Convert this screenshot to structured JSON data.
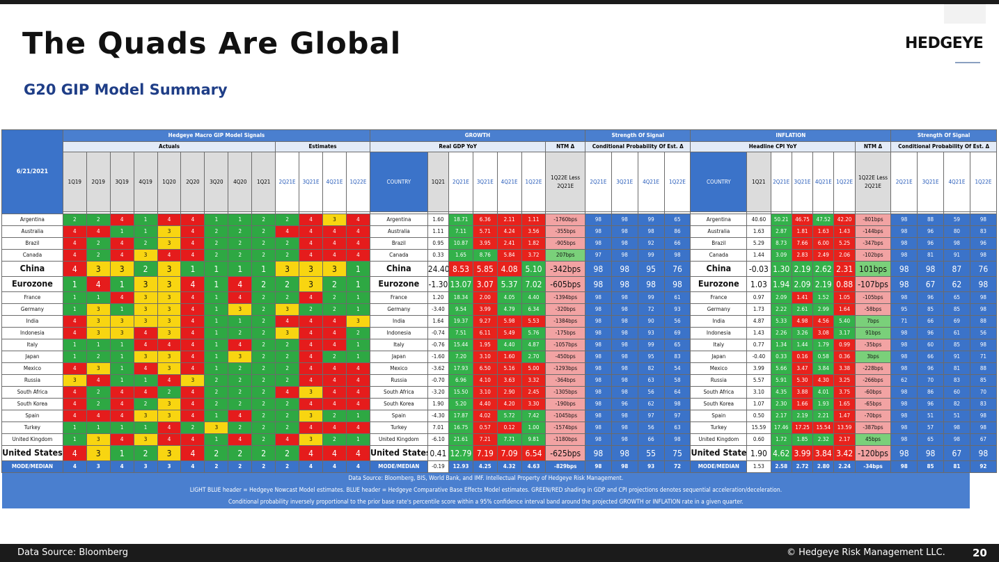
{
  "slide": {
    "title": "The Quads Are Global",
    "subtitle": "G20 GIP Model Summary",
    "logo": "HEDGEYE",
    "footer_left": "Data Source: Bloomberg",
    "footer_right": "© Hedgeye Risk Management LLC.",
    "page": "20"
  },
  "colors": {
    "green": "#2ea843",
    "yellow": "#f8d511",
    "red": "#e51c1c",
    "blue_header": "#4a7fcf",
    "light_blue_header": "#e3ebf7"
  },
  "table": {
    "date": "6/21/2021",
    "h_signals": "Hedgeye Macro GIP Model Signals",
    "h_actuals": "Actuals",
    "h_estimates": "Estimates",
    "h_growth": "GROWTH",
    "h_inflation": "INFLATION",
    "h_strength": "Strength Of Signal",
    "h_cond": "Conditional Probability Of Est. Δ",
    "h_real_gdp": "Real GDP YoY",
    "h_headline_cpi": "Headline CPI YoY",
    "h_ntm": "NTM Δ",
    "h_country": "COUNTRY",
    "h_gdp_less": "1Q22E Less 2Q21E",
    "h_cpi_less": "1Q22E Less 2Q21E",
    "quarters_actual": [
      "1Q19",
      "2Q19",
      "3Q19",
      "4Q19",
      "1Q20",
      "2Q20",
      "3Q20",
      "4Q20",
      "1Q21"
    ],
    "quarters_est": [
      "2Q21E",
      "3Q21E",
      "4Q21E",
      "1Q22E"
    ],
    "gdp_q": [
      "1Q21",
      "2Q21E",
      "3Q21E",
      "4Q21E",
      "1Q22E"
    ],
    "prob_q": [
      "2Q21E",
      "3Q21E",
      "4Q21E",
      "1Q22E"
    ],
    "rows": [
      {
        "c": "Argentina",
        "q": [
          "2",
          "2",
          "4",
          "1",
          "4",
          "4",
          "1",
          "1",
          "2",
          "2",
          "4",
          "3",
          "4"
        ],
        "gdp": [
          "1.60",
          "18.71",
          "6.36",
          "2.11",
          "1.11"
        ],
        "gn": "-1760bps",
        "gp": [
          "98",
          "98",
          "99",
          "65"
        ],
        "cpi": [
          "40.60",
          "50.21",
          "46.75",
          "47.52",
          "42.20"
        ],
        "in": "-801bps",
        "ip": [
          "98",
          "88",
          "59",
          "98"
        ]
      },
      {
        "c": "Australia",
        "q": [
          "4",
          "4",
          "1",
          "1",
          "3",
          "4",
          "2",
          "2",
          "2",
          "4",
          "4",
          "4",
          "4"
        ],
        "gdp": [
          "1.11",
          "7.11",
          "5.71",
          "4.24",
          "3.56"
        ],
        "gn": "-355bps",
        "gp": [
          "98",
          "98",
          "98",
          "86"
        ],
        "cpi": [
          "1.63",
          "2.87",
          "1.81",
          "1.63",
          "1.43"
        ],
        "in": "-144bps",
        "ip": [
          "98",
          "96",
          "80",
          "83"
        ]
      },
      {
        "c": "Brazil",
        "q": [
          "4",
          "2",
          "4",
          "2",
          "3",
          "4",
          "2",
          "2",
          "2",
          "2",
          "4",
          "4",
          "4"
        ],
        "gdp": [
          "0.95",
          "10.87",
          "3.95",
          "2.41",
          "1.82"
        ],
        "gn": "-905bps",
        "gp": [
          "98",
          "98",
          "92",
          "66"
        ],
        "cpi": [
          "5.29",
          "8.73",
          "7.66",
          "6.00",
          "5.25"
        ],
        "in": "-347bps",
        "ip": [
          "98",
          "96",
          "98",
          "96"
        ]
      },
      {
        "c": "Canada",
        "q": [
          "4",
          "2",
          "4",
          "3",
          "4",
          "4",
          "2",
          "2",
          "2",
          "2",
          "4",
          "4",
          "4"
        ],
        "gdp": [
          "0.33",
          "1.65",
          "8.76",
          "5.84",
          "3.72"
        ],
        "gn": "207bps",
        "gp": [
          "97",
          "98",
          "99",
          "98"
        ],
        "cpi": [
          "1.44",
          "3.09",
          "2.83",
          "2.49",
          "2.06"
        ],
        "in": "-102bps",
        "ip": [
          "98",
          "81",
          "91",
          "98"
        ]
      },
      {
        "c": "China",
        "big": true,
        "q": [
          "4",
          "3",
          "3",
          "2",
          "3",
          "1",
          "1",
          "1",
          "1",
          "3",
          "3",
          "3",
          "1"
        ],
        "gdp": [
          "24.40",
          "8.53",
          "5.85",
          "4.08",
          "5.10"
        ],
        "gn": "-342bps",
        "gp": [
          "98",
          "98",
          "95",
          "76"
        ],
        "cpi": [
          "-0.03",
          "1.30",
          "2.19",
          "2.62",
          "2.31"
        ],
        "in": "101bps",
        "ip": [
          "98",
          "98",
          "87",
          "76"
        ]
      },
      {
        "c": "Eurozone",
        "big": true,
        "q": [
          "1",
          "4",
          "1",
          "3",
          "3",
          "4",
          "1",
          "4",
          "2",
          "2",
          "3",
          "2",
          "1"
        ],
        "gdp": [
          "-1.30",
          "13.07",
          "3.07",
          "5.37",
          "7.02"
        ],
        "gn": "-605bps",
        "gp": [
          "98",
          "98",
          "98",
          "98"
        ],
        "cpi": [
          "1.03",
          "1.94",
          "2.09",
          "2.19",
          "0.88"
        ],
        "in": "-107bps",
        "ip": [
          "98",
          "67",
          "62",
          "98"
        ]
      },
      {
        "c": "France",
        "q": [
          "1",
          "1",
          "4",
          "3",
          "3",
          "4",
          "1",
          "4",
          "2",
          "2",
          "4",
          "2",
          "1"
        ],
        "gdp": [
          "1.20",
          "18.34",
          "2.00",
          "4.05",
          "4.40"
        ],
        "gn": "-1394bps",
        "gp": [
          "98",
          "98",
          "99",
          "61"
        ],
        "cpi": [
          "0.97",
          "2.09",
          "1.41",
          "1.52",
          "1.05"
        ],
        "in": "-105bps",
        "ip": [
          "98",
          "96",
          "65",
          "98"
        ]
      },
      {
        "c": "Germany",
        "q": [
          "1",
          "3",
          "1",
          "3",
          "3",
          "4",
          "1",
          "3",
          "2",
          "3",
          "2",
          "2",
          "1"
        ],
        "gdp": [
          "-3.40",
          "9.54",
          "3.99",
          "4.79",
          "6.34"
        ],
        "gn": "-320bps",
        "gp": [
          "98",
          "98",
          "72",
          "93"
        ],
        "cpi": [
          "1.73",
          "2.22",
          "2.61",
          "2.99",
          "1.64"
        ],
        "in": "-58bps",
        "ip": [
          "95",
          "85",
          "85",
          "98"
        ]
      },
      {
        "c": "India",
        "q": [
          "4",
          "3",
          "3",
          "3",
          "3",
          "4",
          "1",
          "1",
          "2",
          "4",
          "4",
          "4",
          "3"
        ],
        "gdp": [
          "1.64",
          "19.37",
          "9.27",
          "5.98",
          "5.53"
        ],
        "gn": "-1384bps",
        "gp": [
          "98",
          "98",
          "90",
          "56"
        ],
        "cpi": [
          "4.87",
          "5.33",
          "4.98",
          "4.56",
          "5.40"
        ],
        "in": "7bps",
        "ip": [
          "71",
          "66",
          "69",
          "88"
        ]
      },
      {
        "c": "Indonesia",
        "q": [
          "4",
          "3",
          "3",
          "4",
          "3",
          "4",
          "1",
          "2",
          "2",
          "3",
          "4",
          "4",
          "2"
        ],
        "gdp": [
          "-0.74",
          "7.51",
          "6.11",
          "5.49",
          "5.76"
        ],
        "gn": "-175bps",
        "gp": [
          "98",
          "98",
          "93",
          "69"
        ],
        "cpi": [
          "1.43",
          "2.26",
          "3.26",
          "3.08",
          "3.17"
        ],
        "in": "91bps",
        "ip": [
          "98",
          "96",
          "61",
          "56"
        ]
      },
      {
        "c": "Italy",
        "q": [
          "1",
          "1",
          "1",
          "4",
          "4",
          "4",
          "1",
          "4",
          "2",
          "2",
          "4",
          "4",
          "1"
        ],
        "gdp": [
          "-0.76",
          "15.44",
          "1.95",
          "4.40",
          "4.87"
        ],
        "gn": "-1057bps",
        "gp": [
          "98",
          "98",
          "99",
          "65"
        ],
        "cpi": [
          "0.77",
          "1.34",
          "1.44",
          "1.79",
          "0.99"
        ],
        "in": "-35bps",
        "ip": [
          "98",
          "60",
          "85",
          "98"
        ]
      },
      {
        "c": "Japan",
        "q": [
          "1",
          "2",
          "1",
          "3",
          "3",
          "4",
          "1",
          "3",
          "2",
          "2",
          "4",
          "2",
          "1"
        ],
        "gdp": [
          "-1.60",
          "7.20",
          "3.10",
          "1.60",
          "2.70"
        ],
        "gn": "-450bps",
        "gp": [
          "98",
          "98",
          "95",
          "83"
        ],
        "cpi": [
          "-0.40",
          "0.33",
          "0.16",
          "0.58",
          "0.36"
        ],
        "in": "3bps",
        "ip": [
          "98",
          "66",
          "91",
          "71"
        ]
      },
      {
        "c": "Mexico",
        "q": [
          "4",
          "3",
          "1",
          "4",
          "3",
          "4",
          "1",
          "2",
          "2",
          "2",
          "4",
          "4",
          "4"
        ],
        "gdp": [
          "-3.62",
          "17.93",
          "6.50",
          "5.16",
          "5.00"
        ],
        "gn": "-1293bps",
        "gp": [
          "98",
          "98",
          "82",
          "54"
        ],
        "cpi": [
          "3.99",
          "5.66",
          "3.47",
          "3.84",
          "3.38"
        ],
        "in": "-228bps",
        "ip": [
          "98",
          "96",
          "81",
          "88"
        ]
      },
      {
        "c": "Russia",
        "q": [
          "3",
          "4",
          "1",
          "1",
          "4",
          "3",
          "2",
          "2",
          "2",
          "2",
          "4",
          "4",
          "4"
        ],
        "gdp": [
          "-0.70",
          "6.96",
          "4.10",
          "3.63",
          "3.32"
        ],
        "gn": "-364bps",
        "gp": [
          "98",
          "98",
          "63",
          "58"
        ],
        "cpi": [
          "5.57",
          "5.91",
          "5.30",
          "4.30",
          "3.25"
        ],
        "in": "-266bps",
        "ip": [
          "62",
          "70",
          "83",
          "85"
        ]
      },
      {
        "c": "South Africa",
        "q": [
          "4",
          "2",
          "4",
          "4",
          "2",
          "4",
          "2",
          "2",
          "2",
          "4",
          "3",
          "4",
          "4"
        ],
        "gdp": [
          "-3.20",
          "15.50",
          "3.10",
          "2.90",
          "2.45"
        ],
        "gn": "-1305bps",
        "gp": [
          "98",
          "98",
          "56",
          "64"
        ],
        "cpi": [
          "3.10",
          "4.35",
          "3.88",
          "4.01",
          "3.75"
        ],
        "in": "-60bps",
        "ip": [
          "98",
          "86",
          "60",
          "70"
        ]
      },
      {
        "c": "South Korea",
        "q": [
          "4",
          "2",
          "4",
          "2",
          "3",
          "4",
          "2",
          "2",
          "2",
          "2",
          "4",
          "4",
          "4"
        ],
        "gdp": [
          "1.90",
          "5.20",
          "4.40",
          "4.20",
          "3.30"
        ],
        "gn": "-190bps",
        "gp": [
          "98",
          "96",
          "62",
          "98"
        ],
        "cpi": [
          "1.07",
          "2.30",
          "1.66",
          "1.93",
          "1.65"
        ],
        "in": "-65bps",
        "ip": [
          "98",
          "96",
          "82",
          "83"
        ]
      },
      {
        "c": "Spain",
        "q": [
          "4",
          "4",
          "4",
          "3",
          "3",
          "4",
          "1",
          "4",
          "2",
          "2",
          "3",
          "2",
          "1"
        ],
        "gdp": [
          "-4.30",
          "17.87",
          "4.02",
          "5.72",
          "7.42"
        ],
        "gn": "-1045bps",
        "gp": [
          "98",
          "98",
          "97",
          "97"
        ],
        "cpi": [
          "0.50",
          "2.17",
          "2.19",
          "2.21",
          "1.47"
        ],
        "in": "-70bps",
        "ip": [
          "98",
          "51",
          "51",
          "98"
        ]
      },
      {
        "c": "Turkey",
        "q": [
          "1",
          "1",
          "1",
          "1",
          "4",
          "2",
          "3",
          "2",
          "2",
          "2",
          "4",
          "4",
          "4"
        ],
        "gdp": [
          "7.01",
          "16.75",
          "0.57",
          "0.12",
          "1.00"
        ],
        "gn": "-1574bps",
        "gp": [
          "98",
          "98",
          "56",
          "63"
        ],
        "cpi": [
          "15.59",
          "17.46",
          "17.25",
          "15.54",
          "13.59"
        ],
        "in": "-387bps",
        "ip": [
          "98",
          "57",
          "98",
          "98"
        ]
      },
      {
        "c": "United Kingdom",
        "q": [
          "1",
          "3",
          "4",
          "3",
          "4",
          "4",
          "1",
          "4",
          "2",
          "4",
          "3",
          "2",
          "1"
        ],
        "gdp": [
          "-6.10",
          "21.61",
          "7.21",
          "7.71",
          "9.81"
        ],
        "gn": "-1180bps",
        "gp": [
          "98",
          "98",
          "66",
          "98"
        ],
        "cpi": [
          "0.60",
          "1.72",
          "1.85",
          "2.32",
          "2.17"
        ],
        "in": "45bps",
        "ip": [
          "98",
          "65",
          "98",
          "67"
        ]
      },
      {
        "c": "United States",
        "big": true,
        "q": [
          "4",
          "3",
          "1",
          "2",
          "3",
          "4",
          "2",
          "2",
          "2",
          "2",
          "4",
          "4",
          "4"
        ],
        "gdp": [
          "0.41",
          "12.79",
          "7.19",
          "7.09",
          "6.54"
        ],
        "gn": "-625bps",
        "gp": [
          "98",
          "98",
          "55",
          "75"
        ],
        "cpi": [
          "1.90",
          "4.62",
          "3.99",
          "3.84",
          "3.42"
        ],
        "in": "-120bps",
        "ip": [
          "98",
          "98",
          "67",
          "98"
        ]
      }
    ],
    "median": {
      "label": "MODE/MEDIAN",
      "q": [
        "4",
        "3",
        "4",
        "3",
        "3",
        "4",
        "2",
        "2",
        "2",
        "2",
        "4",
        "4",
        "4"
      ],
      "gdp": [
        "-0.19",
        "12.93",
        "4.25",
        "4.32",
        "4.63"
      ],
      "gn": "-829bps",
      "gp": [
        "98",
        "98",
        "93",
        "72"
      ],
      "cpi": [
        "1.53",
        "2.58",
        "2.72",
        "2.80",
        "2.24"
      ],
      "in": "-34bps",
      "ip": [
        "98",
        "85",
        "81",
        "92"
      ]
    },
    "notes": [
      "Data Source: Bloomberg, BIS, World Bank, and IMF. Intellectual Property of Hedgeye Risk Management.",
      "LIGHT BLUE header = Hedgeye Nowcast Model estimates. BLUE header = Hedgeye Comparative Base Effects Model estimates. GREEN/RED shading in GDP and CPI projections denotes sequential acceleration/deceleration.",
      "Conditional probability inversely proportional to the prior base rate's percentile score within a 95% confidence interval band around the projected GROWTH or INFLATION rate in a given quarter."
    ]
  }
}
